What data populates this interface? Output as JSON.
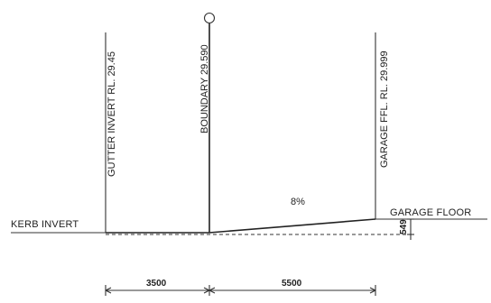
{
  "labels": {
    "gutter_invert": "GUTTER INVERT RL. 29.45",
    "boundary": "BOUNDARY 29.590",
    "garage_ffl": "GARAGE FFL. RL. 29.999",
    "grade": "8%",
    "kerb_invert": "KERB INVERT",
    "garage_floor": "GARAGE FLOOR",
    "step_height": "549"
  },
  "dimensions": {
    "left_span": "3500",
    "right_span": "5500"
  }
}
